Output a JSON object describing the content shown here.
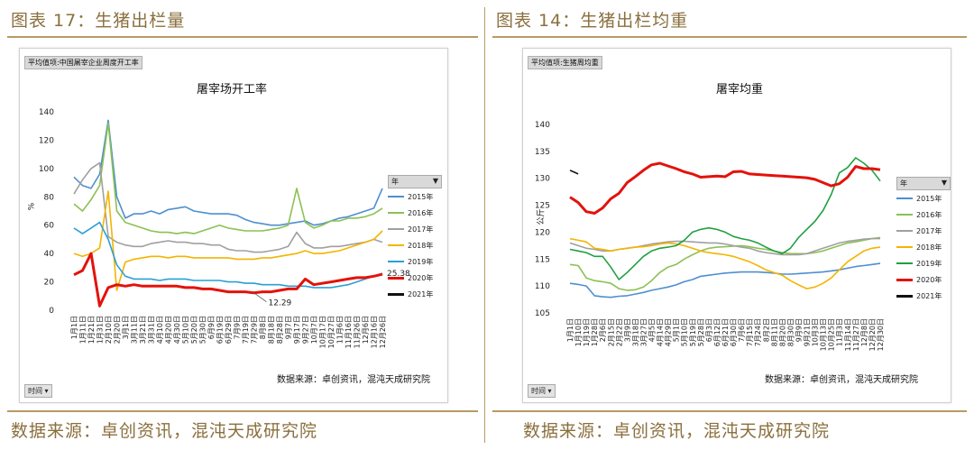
{
  "left": {
    "figure_title": "图表 17：生猪出栏量",
    "pivot_button": "平均值项:中国屠宰企业周度开工率",
    "source_note": "数据来源：卓创资讯，混沌天成研究院",
    "time_dropdown": "时间",
    "footer_source": "数据来源：卓创资讯，混沌天成研究院"
  },
  "right": {
    "figure_title": "图表 14：生猪出栏均重",
    "pivot_button": "平均值项:生猪周均重",
    "source_note": "数据来源：卓创资讯，混沌天成研究院",
    "time_dropdown": "时间",
    "footer_source": "数据来源：卓创资讯，混沌天成研究院"
  },
  "legend_title": "年",
  "chart_data": [
    {
      "type": "line",
      "title": "屠宰场开工率",
      "ylabel": "%",
      "ylim": [
        0,
        140
      ],
      "yticks": [
        0,
        20,
        40,
        60,
        80,
        100,
        120,
        140
      ],
      "x_labels": [
        "1月1日",
        "1月11日",
        "1月21日",
        "1月31日",
        "2月10日",
        "2月20日",
        "3月1日",
        "3月11日",
        "3月21日",
        "3月31日",
        "4月10日",
        "4月20日",
        "4月30日",
        "5月10日",
        "5月20日",
        "5月30日",
        "6月9日",
        "6月19日",
        "6月29日",
        "7月9日",
        "7月19日",
        "7月29日",
        "8月8日",
        "8月18日",
        "8月28日",
        "9月7日",
        "9月17日",
        "9月27日",
        "10月7日",
        "10月17日",
        "10月27日",
        "11月6日",
        "11月16日",
        "11月26日",
        "12月6日",
        "12月16日",
        "12月26日"
      ],
      "series": [
        {
          "name": "2015年",
          "color": "#4f8fcf",
          "values": [
            94,
            88,
            86,
            96,
            134,
            80,
            65,
            68,
            68,
            70,
            68,
            71,
            72,
            73,
            70,
            69,
            68,
            68,
            68,
            67,
            64,
            62,
            61,
            60,
            60,
            61,
            62,
            63,
            60,
            61,
            63,
            65,
            66,
            68,
            70,
            72,
            86
          ]
        },
        {
          "name": "2016年",
          "color": "#8cc152",
          "values": [
            75,
            70,
            78,
            88,
            132,
            70,
            62,
            60,
            58,
            56,
            55,
            55,
            54,
            55,
            54,
            56,
            58,
            60,
            58,
            57,
            56,
            56,
            56,
            57,
            58,
            60,
            86,
            62,
            58,
            60,
            63,
            63,
            65,
            65,
            66,
            68,
            72
          ]
        },
        {
          "name": "2017年",
          "color": "#a0a0a0",
          "values": [
            82,
            92,
            100,
            104,
            52,
            48,
            46,
            45,
            45,
            47,
            48,
            49,
            48,
            48,
            47,
            47,
            46,
            46,
            43,
            42,
            42,
            41,
            41,
            42,
            43,
            45,
            55,
            47,
            44,
            44,
            45,
            45,
            46,
            47,
            48,
            50,
            48
          ]
        },
        {
          "name": "2018年",
          "color": "#f4b400",
          "values": [
            40,
            38,
            40,
            44,
            84,
            14,
            34,
            36,
            37,
            38,
            38,
            37,
            38,
            38,
            37,
            37,
            37,
            37,
            37,
            36,
            36,
            36,
            37,
            37,
            38,
            39,
            40,
            42,
            40,
            40,
            41,
            42,
            44,
            46,
            48,
            50,
            56
          ]
        },
        {
          "name": "2019年",
          "color": "#2a9fd6",
          "values": [
            58,
            54,
            58,
            62,
            50,
            32,
            24,
            22,
            22,
            22,
            21,
            22,
            22,
            22,
            21,
            21,
            21,
            21,
            20,
            20,
            19,
            19,
            18,
            18,
            18,
            17,
            17,
            17,
            16,
            16,
            16,
            17,
            18,
            20,
            22,
            24,
            26
          ]
        },
        {
          "name": "2020年",
          "color": "#e3120b",
          "values": [
            25,
            28,
            40,
            3,
            16,
            18,
            17,
            18,
            17,
            17,
            17,
            17,
            17,
            16,
            16,
            15,
            15,
            14,
            13,
            13,
            13,
            12.29,
            13,
            13,
            14,
            15,
            15,
            22,
            18,
            19,
            20,
            21,
            22,
            23,
            23,
            24,
            25.38
          ]
        },
        {
          "name": "2021年",
          "color": "#111111",
          "values": [
            22,
            null,
            null,
            null,
            null,
            null,
            null,
            null,
            null,
            null,
            null,
            null,
            null,
            null,
            null,
            null,
            null,
            null,
            null,
            null,
            null,
            null,
            null,
            null,
            null,
            null,
            null,
            null,
            null,
            null,
            null,
            null,
            null,
            null,
            null,
            null,
            null
          ]
        }
      ],
      "annotations": [
        "12.29",
        "25.38"
      ]
    },
    {
      "type": "line",
      "title": "屠宰均重",
      "ylabel": "公斤",
      "ylim": [
        105,
        140
      ],
      "yticks": [
        105,
        110,
        115,
        120,
        125,
        130,
        135,
        140
      ],
      "x_labels": [
        "1月1日",
        "1月10日",
        "1月19日",
        "1月28日",
        "2月6日",
        "2月15日",
        "2月22日",
        "3月9日",
        "3月18日",
        "3月27日",
        "4月5日",
        "4月14日",
        "4月29日",
        "5月1日",
        "5月10日",
        "5月19日",
        "5月28日",
        "6月3日",
        "6月12日",
        "6月21日",
        "6月30日",
        "7月6日",
        "7月15日",
        "7月24日",
        "8月2日",
        "8月11日",
        "8月20日",
        "8月30日",
        "9月9日",
        "9月21日",
        "10月3日",
        "10月13日",
        "10月25日",
        "11月3日",
        "11月14日",
        "11月27日",
        "12月8日",
        "12月20日",
        "12月30日"
      ],
      "series": [
        {
          "name": "2015年",
          "color": "#4f8fcf",
          "values": [
            110.5,
            110.3,
            110,
            108.2,
            108,
            107.9,
            108.1,
            108.2,
            108.5,
            108.8,
            109.2,
            109.5,
            109.8,
            110.2,
            110.8,
            111.2,
            111.8,
            112,
            112.2,
            112.4,
            112.5,
            112.6,
            112.6,
            112.6,
            112.5,
            112.4,
            112.2,
            112.2,
            112.3,
            112.4,
            112.5,
            112.6,
            112.8,
            113,
            113.3,
            113.6,
            113.8,
            114,
            114.2
          ]
        },
        {
          "name": "2016年",
          "color": "#8cc152",
          "values": [
            114,
            113.8,
            111.5,
            111,
            110.8,
            110.5,
            109.5,
            109.2,
            109.3,
            109.8,
            111,
            112.5,
            113.5,
            114,
            115,
            115.8,
            116.5,
            117,
            117.2,
            117.3,
            117.4,
            117.5,
            117.3,
            117,
            116.8,
            116.5,
            116.2,
            116,
            116,
            116,
            116.2,
            116.5,
            117,
            117.5,
            118,
            118.2,
            118.5,
            118.8,
            119
          ]
        },
        {
          "name": "2017年",
          "color": "#a0a0a0",
          "values": [
            118,
            117.5,
            117,
            116.8,
            116.5,
            116.5,
            116.8,
            117,
            117.2,
            117.5,
            117.8,
            118,
            118.2,
            118.3,
            118.3,
            118.2,
            118.1,
            118,
            118,
            117.8,
            117.5,
            117.2,
            117,
            116.5,
            116.2,
            116,
            115.8,
            115.8,
            115.8,
            116,
            116.5,
            117,
            117.5,
            118,
            118.3,
            118.5,
            118.7,
            118.8,
            118.8
          ]
        },
        {
          "name": "2018年",
          "color": "#f4b400",
          "values": [
            118.8,
            118.5,
            118.2,
            117,
            116.8,
            116.5,
            116.8,
            117,
            117.2,
            117.3,
            117.5,
            117.8,
            118,
            117.8,
            117.5,
            117,
            116.5,
            116.2,
            116,
            115.8,
            115.5,
            115,
            114.5,
            113.8,
            113,
            112.5,
            112,
            111,
            110.2,
            109.5,
            109.8,
            110.5,
            111.5,
            113,
            114.5,
            115.5,
            116.5,
            117,
            117.2
          ]
        },
        {
          "name": "2019年",
          "color": "#20a040",
          "values": [
            116.8,
            116.5,
            116.2,
            115.5,
            115.5,
            113.5,
            111.2,
            112.5,
            114,
            115.5,
            116.5,
            117,
            117.2,
            117.5,
            118.5,
            120,
            120.5,
            120.8,
            120.5,
            120,
            119.2,
            118.8,
            118.5,
            118,
            117.2,
            116.5,
            116,
            117,
            119,
            120.5,
            122,
            124,
            127,
            131,
            132,
            133.8,
            132.8,
            131.5,
            129.5
          ]
        },
        {
          "name": "2020年",
          "color": "#e3120b",
          "values": [
            126.5,
            125.5,
            123.8,
            123.5,
            124.5,
            126.2,
            127.2,
            129.2,
            130.3,
            131.5,
            132.5,
            132.8,
            132.3,
            131.8,
            131.2,
            130.8,
            130.2,
            130.3,
            130.4,
            130.3,
            131.2,
            131.3,
            130.8,
            130.7,
            130.6,
            130.5,
            130.4,
            130.3,
            130.2,
            130.1,
            129.8,
            129.2,
            128.6,
            129,
            130.2,
            132.2,
            131.8,
            131.8,
            131.6
          ]
        },
        {
          "name": "2021年",
          "color": "#111111",
          "values": [
            131.5,
            130.8,
            null,
            null,
            null,
            null,
            null,
            null,
            null,
            null,
            null,
            null,
            null,
            null,
            null,
            null,
            null,
            null,
            null,
            null,
            null,
            null,
            null,
            null,
            null,
            null,
            null,
            null,
            null,
            null,
            null,
            null,
            null,
            null,
            null,
            null,
            null,
            null,
            null
          ]
        }
      ]
    }
  ]
}
